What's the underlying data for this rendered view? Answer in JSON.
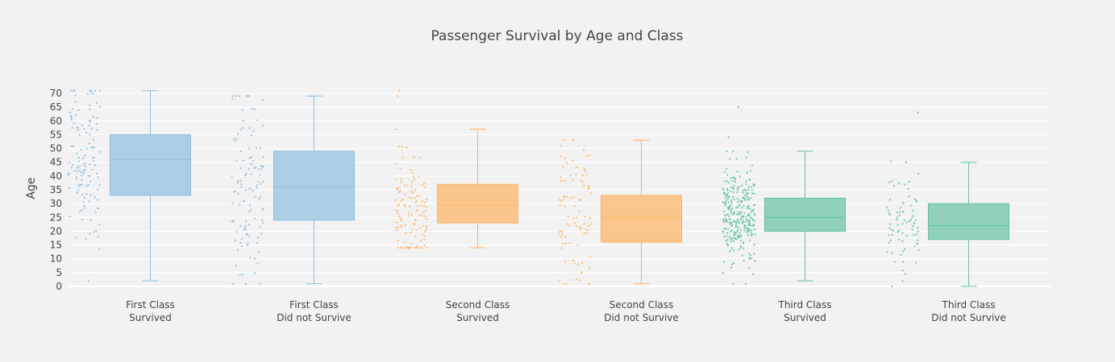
{
  "chart_data": {
    "type": "box",
    "title": "Passenger Survival by Age and Class",
    "ylabel": "Age",
    "xlabel": "",
    "ylim": [
      0,
      71
    ],
    "yticks": [
      0,
      5,
      10,
      15,
      20,
      25,
      30,
      35,
      40,
      45,
      50,
      55,
      60,
      65,
      70
    ],
    "grid": true,
    "boxpoints": "all",
    "series": [
      {
        "label_line1": "First Class",
        "label_line2": "Survived",
        "color": "#8fbfe0",
        "lowerfence": 2,
        "q1": 33,
        "median": 46,
        "q3": 55,
        "upperfence": 71,
        "points_min": 2,
        "points_max": 71,
        "point_count": 130
      },
      {
        "label_line1": "First Class",
        "label_line2": "Did not Survive",
        "color": "#8fbfe0",
        "lowerfence": 1,
        "q1": 24,
        "median": 36,
        "q3": 49,
        "upperfence": 69,
        "points_min": 1,
        "points_max": 69,
        "point_count": 120
      },
      {
        "label_line1": "Second Class",
        "label_line2": "Survived",
        "color": "#fdb462",
        "lowerfence": 14,
        "q1": 23,
        "median": 29.5,
        "q3": 37,
        "upperfence": 57,
        "points_min": 14,
        "points_max": 71,
        "point_count": 120
      },
      {
        "label_line1": "Second Class",
        "label_line2": "Did not Survive",
        "color": "#fdb462",
        "lowerfence": 1,
        "q1": 16,
        "median": 25,
        "q3": 33,
        "upperfence": 53,
        "points_min": 1,
        "points_max": 53,
        "point_count": 90
      },
      {
        "label_line1": "Third Class",
        "label_line2": "Survived",
        "color": "#66c2a5",
        "lowerfence": 2,
        "q1": 20,
        "median": 25,
        "q3": 32,
        "upperfence": 49,
        "points_min": 1,
        "points_max": 65,
        "point_count": 300
      },
      {
        "label_line1": "Third Class",
        "label_line2": "Did not Survive",
        "color": "#66c2a5",
        "lowerfence": 0,
        "q1": 17,
        "median": 22,
        "q3": 30,
        "upperfence": 45,
        "points_min": 0,
        "points_max": 63,
        "point_count": 80
      }
    ]
  }
}
